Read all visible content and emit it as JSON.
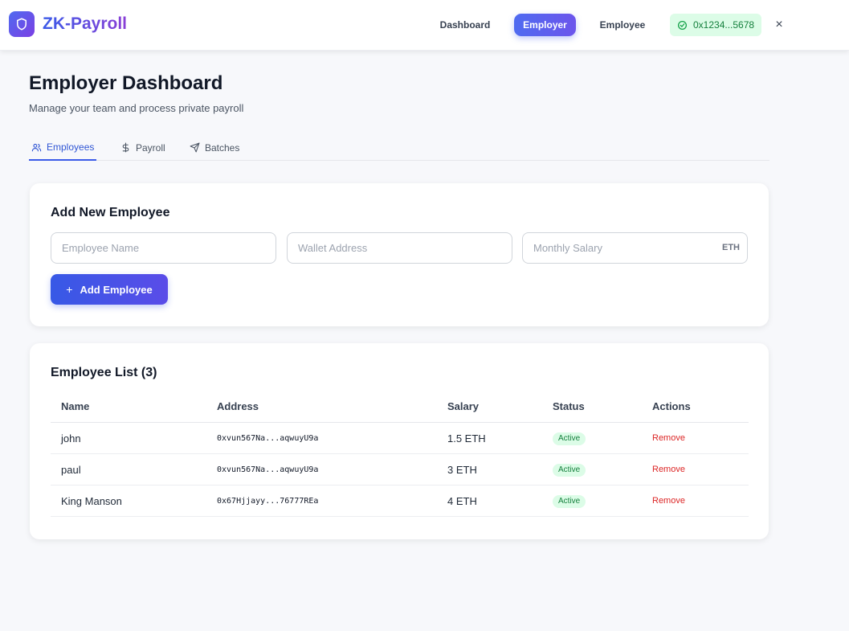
{
  "header": {
    "brand": "ZK-Payroll",
    "nav": [
      {
        "label": "Dashboard"
      },
      {
        "label": "Employer"
      },
      {
        "label": "Employee"
      }
    ],
    "active_nav": "Employer",
    "wallet_address": "0x1234...5678",
    "close_label": "×"
  },
  "page": {
    "title": "Employer Dashboard",
    "subtitle": "Manage your team and process private payroll"
  },
  "tabs": [
    {
      "label": "Employees",
      "icon": "users-icon"
    },
    {
      "label": "Payroll",
      "icon": "dollar-icon"
    },
    {
      "label": "Batches",
      "icon": "send-icon"
    }
  ],
  "active_tab": "Employees",
  "add_employee": {
    "title": "Add New Employee",
    "name_placeholder": "Employee Name",
    "wallet_placeholder": "Wallet Address",
    "salary_placeholder": "Monthly Salary",
    "salary_suffix": "ETH",
    "button_label": "Add Employee"
  },
  "employee_list": {
    "title": "Employee List (3)",
    "columns": [
      "Name",
      "Address",
      "Salary",
      "Status",
      "Actions"
    ],
    "rows": [
      {
        "name": "john",
        "address": "0xvun567Na...aqwuyU9a",
        "salary": "1.5 ETH",
        "status": "Active",
        "action": "Remove"
      },
      {
        "name": "paul",
        "address": "0xvun567Na...aqwuyU9a",
        "salary": "3 ETH",
        "status": "Active",
        "action": "Remove"
      },
      {
        "name": "King Manson",
        "address": "0x67Hjjayy...76777REa",
        "salary": "4 ETH",
        "status": "Active",
        "action": "Remove"
      }
    ]
  },
  "colors": {
    "accent": "#3b5be8",
    "brand_gradient_end": "#8a3fd6",
    "success_bg": "#dcfce7",
    "success_text": "#15803d",
    "danger": "#dc2626"
  }
}
